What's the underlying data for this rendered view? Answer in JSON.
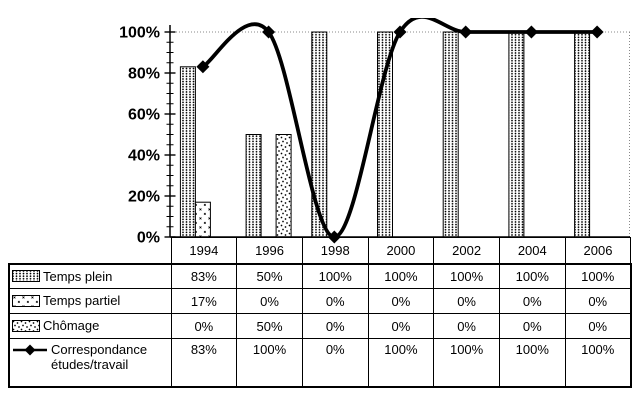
{
  "chart_data": {
    "type": "combo-bar-line",
    "categories": [
      "1994",
      "1996",
      "1998",
      "2000",
      "2002",
      "2004",
      "2006"
    ],
    "y_axis": {
      "tick_labels": [
        "0%",
        "20%",
        "40%",
        "60%",
        "80%",
        "100%"
      ],
      "min": 0,
      "max": 100,
      "major_unit": 20,
      "minor_unit": 5,
      "gridline_at": 100
    },
    "bar_series": [
      {
        "name": "Temps plein",
        "pattern": "dense-dots",
        "values": [
          83,
          50,
          100,
          100,
          100,
          100,
          100
        ]
      },
      {
        "name": "Temps partiel",
        "pattern": "sparse-x",
        "values": [
          17,
          0,
          0,
          0,
          0,
          0,
          0
        ]
      },
      {
        "name": "Chômage",
        "pattern": "scatter-dots",
        "values": [
          0,
          50,
          0,
          0,
          0,
          0,
          0
        ]
      }
    ],
    "line_series": {
      "name": "Correspondance études/travail",
      "values": [
        83,
        100,
        0,
        100,
        100,
        100,
        100
      ],
      "smoothed": true,
      "marker": "diamond",
      "color": "#000000"
    },
    "colors": {
      "foreground": "#000000",
      "background": "#ffffff",
      "gridline": "#888888"
    },
    "legend_position": "table-left"
  },
  "table": {
    "rows": [
      {
        "key": "temps-plein",
        "label": "Temps plein",
        "values": [
          "83%",
          "50%",
          "100%",
          "100%",
          "100%",
          "100%",
          "100%"
        ]
      },
      {
        "key": "temps-partiel",
        "label": "Temps partiel",
        "values": [
          "17%",
          "0%",
          "0%",
          "0%",
          "0%",
          "0%",
          "0%"
        ]
      },
      {
        "key": "chomage",
        "label": "Chômage",
        "values": [
          "0%",
          "50%",
          "0%",
          "0%",
          "0%",
          "0%",
          "0%"
        ]
      },
      {
        "key": "correspondance",
        "label": "Correspondance études/travail",
        "values": [
          "83%",
          "100%",
          "0%",
          "100%",
          "100%",
          "100%",
          "100%"
        ]
      }
    ]
  }
}
